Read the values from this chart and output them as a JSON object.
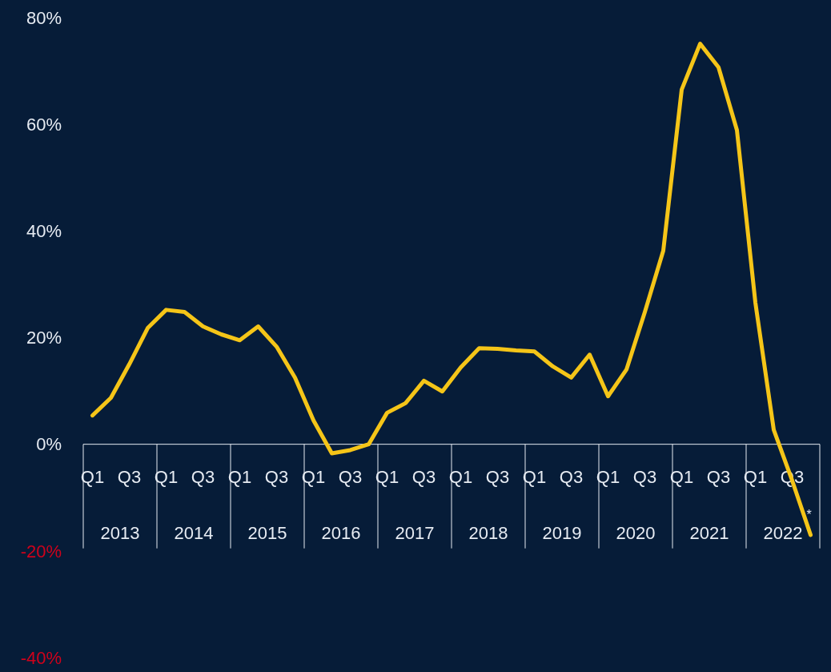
{
  "chart_data": {
    "type": "line",
    "categories": [
      "Q1",
      null,
      "Q3",
      null,
      "Q1",
      null,
      "Q3",
      null,
      "Q1",
      null,
      "Q3",
      null,
      "Q1",
      null,
      "Q3",
      null,
      "Q1",
      null,
      "Q3",
      null,
      "Q1",
      null,
      "Q3",
      null,
      "Q1",
      null,
      "Q3",
      null,
      "Q1",
      null,
      "Q3",
      null,
      "Q1",
      null,
      "Q3",
      null,
      "Q1",
      null,
      "Q3",
      null
    ],
    "series": [
      {
        "color": "#f5c518",
        "values": [
          5.4,
          8.7,
          15,
          21.8,
          25.2,
          24.8,
          22.1,
          20.6,
          19.5,
          22.1,
          18.3,
          12.5,
          4.5,
          -1.7,
          -1.1,
          0,
          5.9,
          7.7,
          11.9,
          9.9,
          14.4,
          18,
          17.9,
          17.6,
          17.4,
          14.6,
          12.5,
          16.8,
          9,
          14,
          24.8,
          36.3,
          66.5,
          75.1,
          70.7,
          58.9,
          26.6,
          2.7,
          -6.8,
          -17
        ]
      }
    ],
    "ylim": [
      -40,
      80
    ],
    "yticks": [
      {
        "value": -40,
        "label": "-40%"
      },
      {
        "value": -20,
        "label": "-20%"
      },
      {
        "value": 0,
        "label": "0%"
      },
      {
        "value": 20,
        "label": "20%"
      },
      {
        "value": 40,
        "label": "40%"
      },
      {
        "value": 60,
        "label": "60%"
      },
      {
        "value": 80,
        "label": "80%"
      }
    ],
    "annotations": [
      "2013",
      "2014",
      "2015",
      "2016",
      "2017",
      "2018",
      "2019",
      "2020",
      "2021",
      "2022",
      "*"
    ],
    "grid": false,
    "marker": "none",
    "line_style": "solid"
  }
}
